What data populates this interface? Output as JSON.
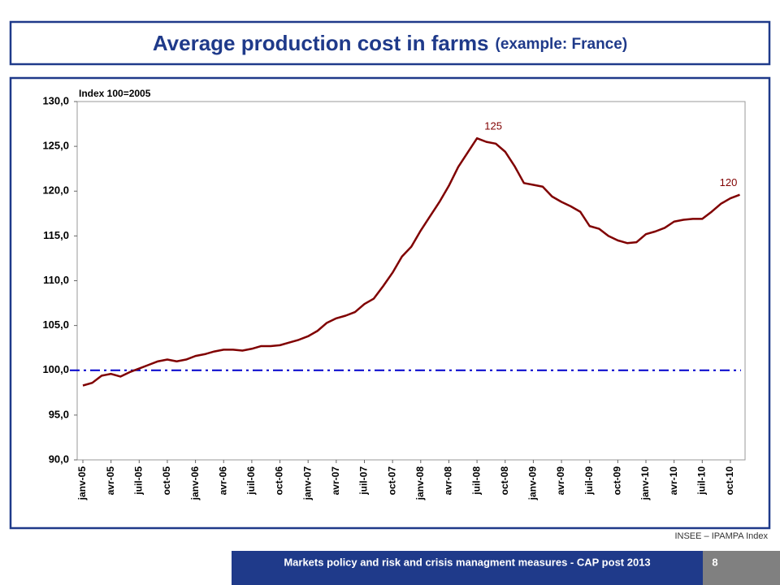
{
  "chart_data": {
    "type": "line",
    "title": "Average production cost in farms",
    "subtitle": "(example: France)",
    "y_label": "Index 100=2005",
    "source": "INSEE – IPAMPA Index",
    "footer": "Markets policy and risk and crisis managment measures - CAP post 2013",
    "page_number": "8",
    "annotations": [
      "125",
      "120"
    ],
    "categories": [
      "janv-05",
      null,
      null,
      "avr-05",
      null,
      null,
      "juil-05",
      null,
      null,
      "oct-05",
      null,
      null,
      "janv-06",
      null,
      null,
      "avr-06",
      null,
      null,
      "juil-06",
      null,
      null,
      "oct-06",
      null,
      null,
      "janv-07",
      null,
      null,
      "avr-07",
      null,
      null,
      "juil-07",
      null,
      null,
      "oct-07",
      null,
      null,
      "janv-08",
      null,
      null,
      "avr-08",
      null,
      null,
      "juil-08",
      null,
      null,
      "oct-08",
      null,
      null,
      "janv-09",
      null,
      null,
      "avr-09",
      null,
      null,
      "juil-09",
      null,
      null,
      "oct-09",
      null,
      null,
      "janv-10",
      null,
      null,
      "avr-10",
      null,
      null,
      "juil-10",
      null,
      null,
      "oct-10",
      null
    ],
    "series": [
      {
        "name": "Index",
        "color": "#800000",
        "values": [
          98.3,
          98.6,
          99.4,
          99.6,
          99.3,
          99.8,
          100.2,
          100.6,
          101.0,
          101.2,
          101.0,
          101.2,
          101.6,
          101.8,
          102.1,
          102.3,
          102.3,
          102.2,
          102.4,
          102.7,
          102.7,
          102.8,
          103.1,
          103.4,
          103.8,
          104.4,
          105.3,
          105.8,
          106.1,
          106.5,
          107.4,
          108.0,
          109.4,
          110.9,
          112.7,
          113.8,
          115.6,
          117.2,
          118.8,
          120.6,
          122.7,
          124.3,
          125.9,
          125.5,
          125.3,
          124.4,
          122.8,
          120.9,
          120.7,
          120.5,
          119.4,
          118.8,
          118.3,
          117.7,
          116.1,
          115.8,
          115.0,
          114.5,
          114.2,
          114.3,
          115.2,
          115.5,
          115.9,
          116.6,
          116.8,
          116.9,
          116.9,
          117.7,
          118.6,
          119.2,
          119.6
        ]
      }
    ],
    "reference_line": {
      "value": 100,
      "color": "#0000cc"
    },
    "ylim": [
      90,
      130
    ],
    "yticks": [
      {
        "value": 90,
        "label": "90,0"
      },
      {
        "value": 95,
        "label": "95,0"
      },
      {
        "value": 100,
        "label": "100,0"
      },
      {
        "value": 105,
        "label": "105,0"
      },
      {
        "value": 110,
        "label": "110,0"
      },
      {
        "value": 115,
        "label": "115,0"
      },
      {
        "value": 120,
        "label": "120,0"
      },
      {
        "value": 125,
        "label": "125,0"
      },
      {
        "value": 130,
        "label": "130,0"
      }
    ],
    "grid": false
  }
}
